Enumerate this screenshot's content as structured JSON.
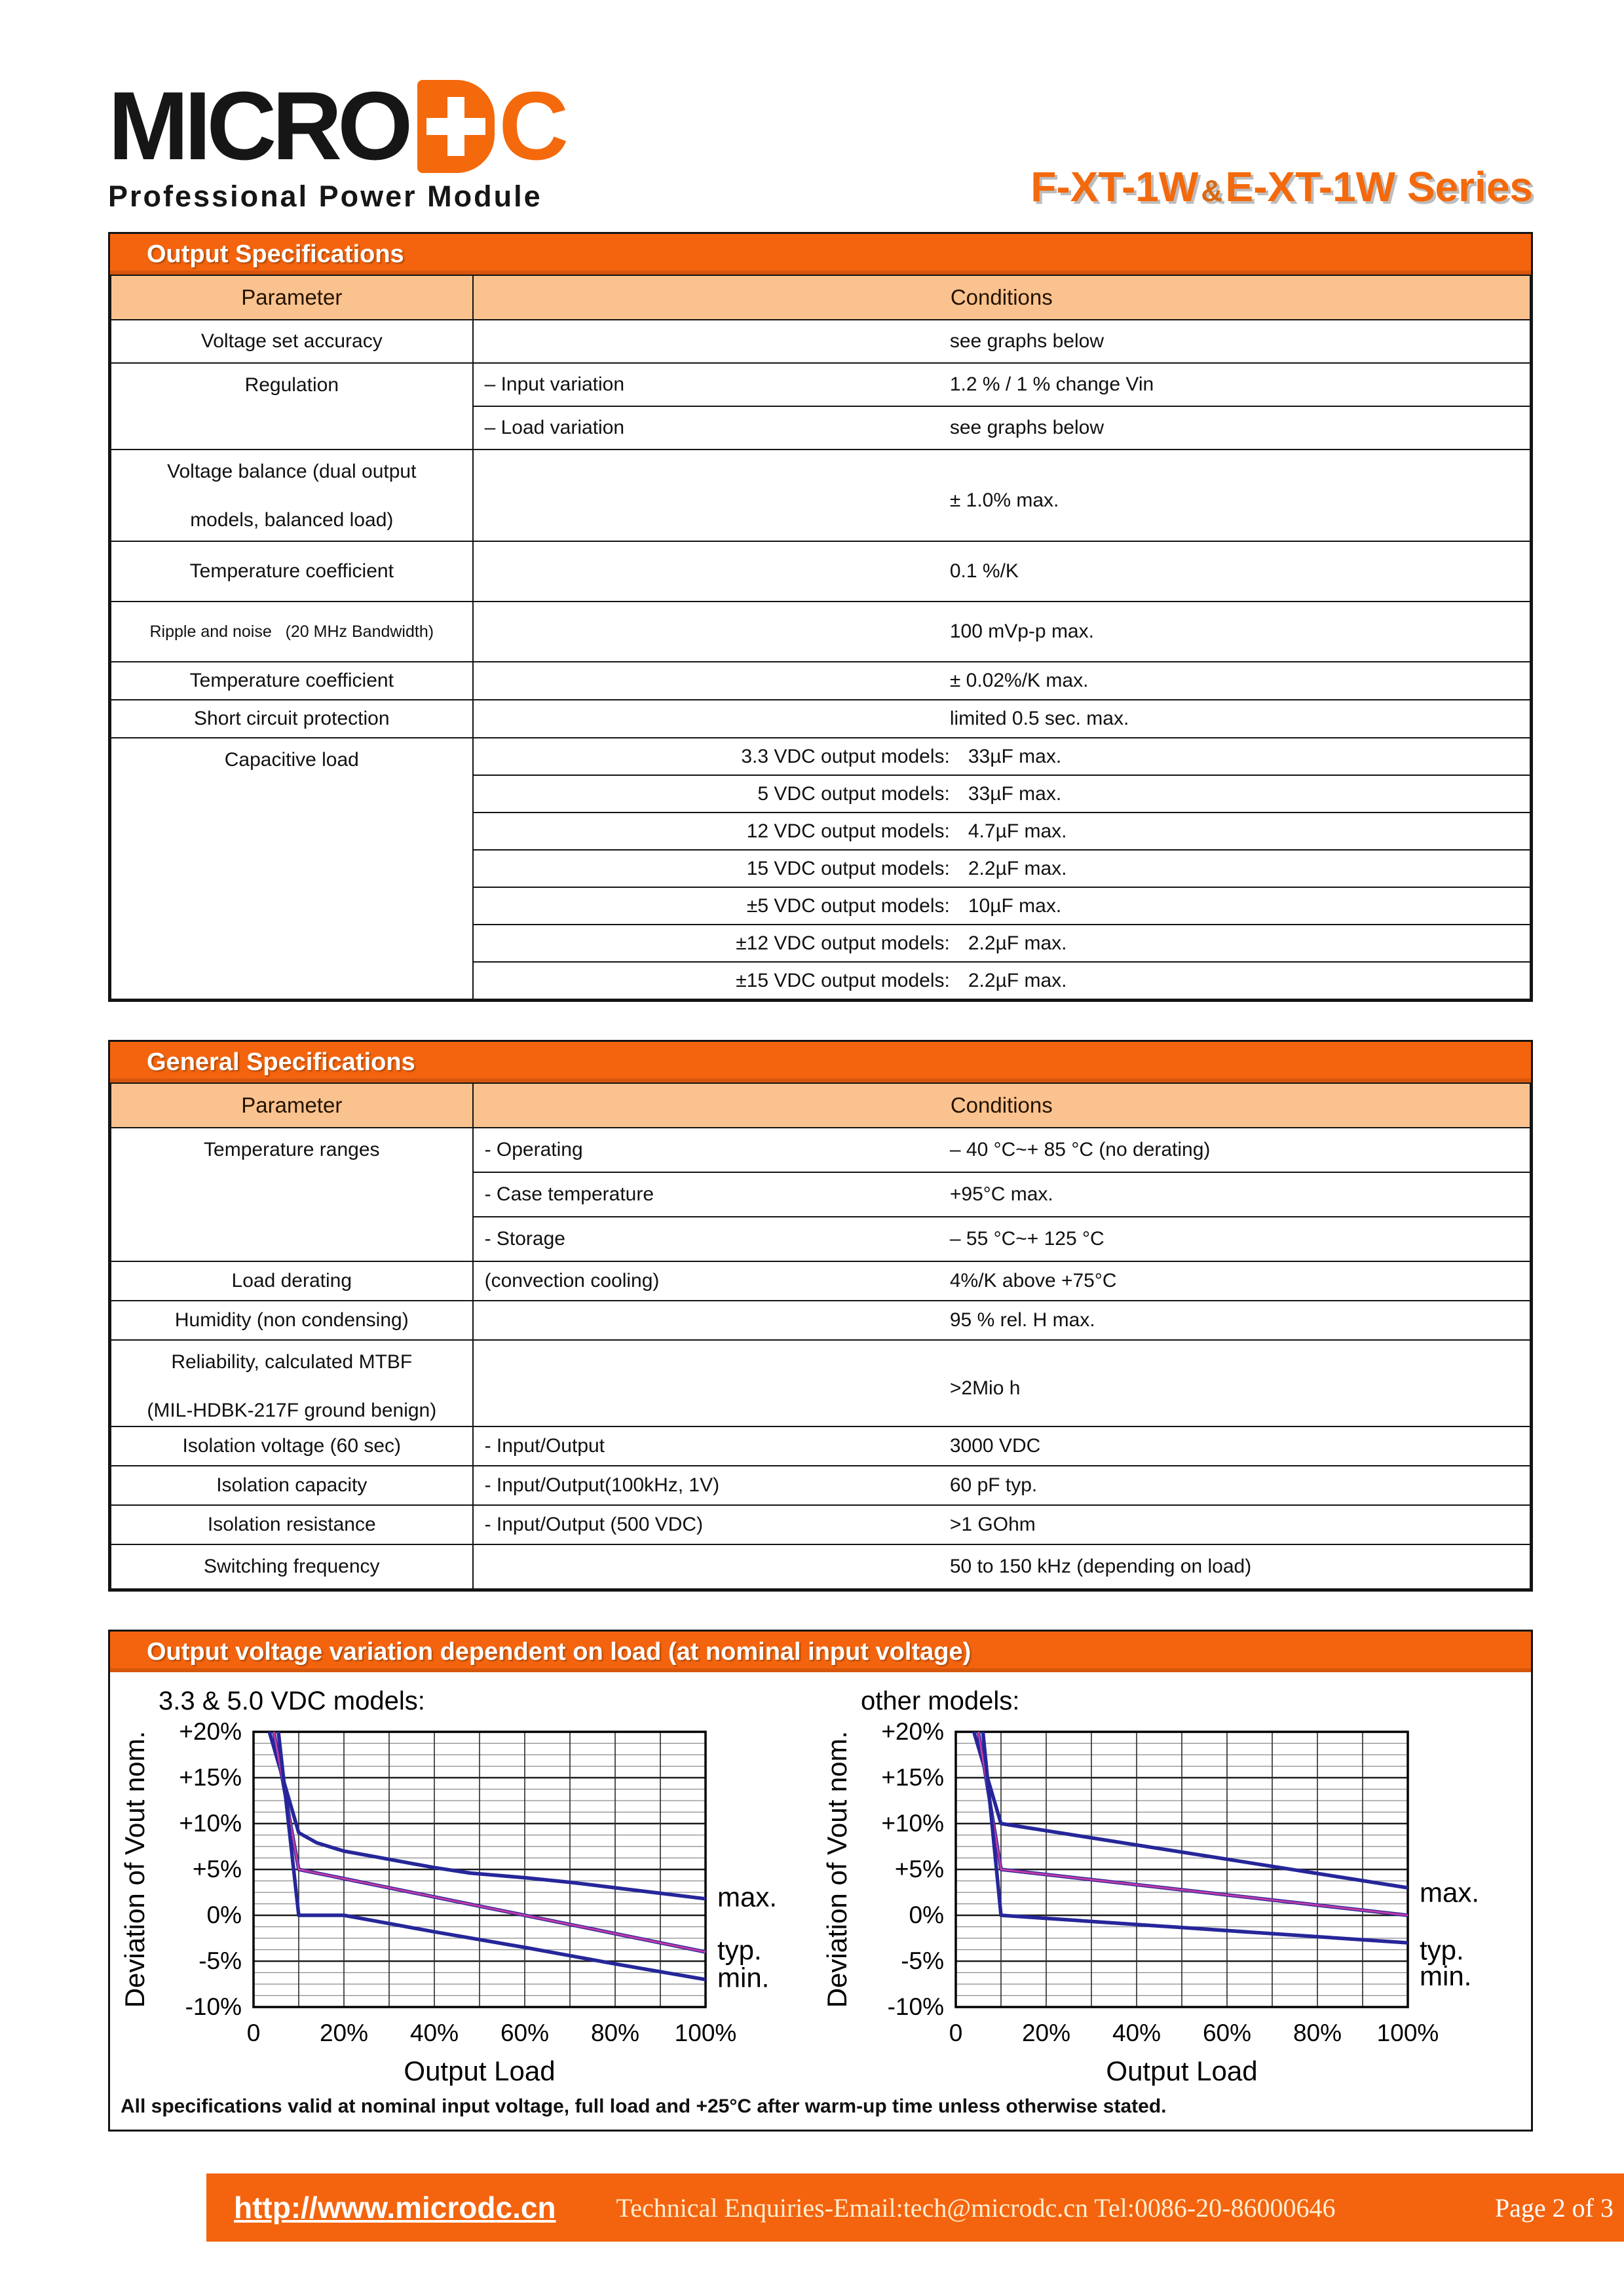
{
  "colors": {
    "orange": "#F4640E",
    "peach": "#FAC28E",
    "navy": "#26269A",
    "magenta": "#C23BA6"
  },
  "header": {
    "logo_black": "MICRO",
    "logo_c": "C",
    "subtitle": "Professional Power Module",
    "series_left": "F-XT-1W",
    "series_amp": "&",
    "series_right": "E-XT-1W Series"
  },
  "output_specs": {
    "title": "Output Specifications",
    "col_headers": [
      "Parameter",
      "Conditions"
    ],
    "rows": [
      {
        "p": "Voltage set accuracy",
        "val": "see graphs below",
        "h": 66
      },
      {
        "p": "Regulation",
        "span": 2,
        "sub": "– Input variation",
        "val": "1.2 % / 1 % change Vin",
        "h": 66
      },
      {
        "sub": "– Load variation",
        "val": "see graphs below",
        "h": 66
      },
      {
        "p": "Voltage balance (dual output|models, balanced load)",
        "tall": true,
        "val": "± 1.0% max.",
        "h": 140
      },
      {
        "p": "Temperature coefficient",
        "val": "0.1 %/K",
        "h": 92
      },
      {
        "p": "Ripple and noise   (20 MHz Bandwidth)",
        "small": true,
        "val": "100 mVp-p max.",
        "h": 92
      },
      {
        "p": "Temperature coefficient",
        "val": "± 0.02%/K max.",
        "h": 58
      },
      {
        "p": "Short circuit protection",
        "val": "limited 0.5 sec. max.",
        "h": 58
      },
      {
        "p": "Capacitive load",
        "span": 7,
        "sub": "3.3 VDC output models:",
        "sa": "r",
        "val": "33µF max.",
        "h": 57
      },
      {
        "sub": "5 VDC output models:",
        "sa": "r",
        "val": "33µF max.",
        "h": 57
      },
      {
        "sub": "12 VDC output models:",
        "sa": "r",
        "val": "4.7µF max.",
        "h": 57
      },
      {
        "sub": "15 VDC output models:",
        "sa": "r",
        "val": "2.2µF max.",
        "h": 57
      },
      {
        "sub": "±5 VDC output models:",
        "sa": "r",
        "val": "10µF max.",
        "h": 57
      },
      {
        "sub": "±12 VDC output models:",
        "sa": "r",
        "val": "2.2µF max.",
        "h": 57
      },
      {
        "sub": "±15 VDC output models:",
        "sa": "r",
        "val": "2.2µF max.",
        "h": 57
      }
    ]
  },
  "general_specs": {
    "title": "General Specifications",
    "col_headers": [
      "Parameter",
      "Conditions"
    ],
    "rows": [
      {
        "p": "Temperature ranges",
        "span": 3,
        "sub": "-  Operating",
        "val": "– 40 °C~+ 85 °C (no derating)",
        "h": 68
      },
      {
        "sub": "-  Case temperature",
        "val": "+95°C max.",
        "h": 68
      },
      {
        "sub": "-  Storage",
        "val": "– 55 °C~+ 125 °C",
        "h": 68
      },
      {
        "p": "Load derating",
        "sub": "(convection cooling)",
        "val": "4%/K above +75°C",
        "h": 60
      },
      {
        "p": "Humidity (non condensing)",
        "val": "95 % rel. H max.",
        "h": 60
      },
      {
        "p": "Reliability, calculated MTBF|(MIL-HDBK-217F ground benign)",
        "tall": true,
        "val": ">2Mio h",
        "h": 132
      },
      {
        "p": "Isolation voltage (60 sec)",
        "sub": "-  Input/Output",
        "val": "3000 VDC",
        "h": 60
      },
      {
        "p": "Isolation capacity",
        "sub": "-  Input/Output(100kHz, 1V)",
        "val": "60 pF typ.",
        "h": 60
      },
      {
        "p": "Isolation resistance",
        "sub": "-  Input/Output (500 VDC)",
        "val": ">1 GOhm",
        "h": 60
      },
      {
        "p": "Switching frequency",
        "val": "50 to 150 kHz (depending on load)",
        "h": 68
      }
    ]
  },
  "charts": {
    "title": "Output voltage variation dependent on load (at nominal input voltage)",
    "note": "All specifications valid at nominal input voltage, full load and +25°C after warm-up time unless otherwise stated."
  },
  "chart_data": [
    {
      "type": "line",
      "title": "3.3 & 5.0 VDC models:",
      "xlabel": "Output Load",
      "ylabel": "Deviation of Vout nom.",
      "xlim": [
        0,
        100
      ],
      "ylim": [
        -10,
        20
      ],
      "grid": "on",
      "legend_position": "right-of-plot",
      "xticks": [
        0,
        20,
        40,
        60,
        80,
        100
      ],
      "xtick_labels": [
        "0",
        "20%",
        "40%",
        "60%",
        "80%",
        "100%"
      ],
      "yticks": [
        20,
        15,
        10,
        5,
        0,
        -5,
        -10
      ],
      "ytick_labels": [
        "+20%",
        "+15%",
        "+10%",
        "+5%",
        "0%",
        "-5%",
        "-10%"
      ],
      "series": [
        {
          "name": "max.",
          "color": "#26269A",
          "label_y": 1.9,
          "points": [
            [
              3.5,
              20
            ],
            [
              10,
              9
            ],
            [
              14,
              7.9
            ],
            [
              20,
              7
            ],
            [
              30,
              6.1
            ],
            [
              40,
              5.2
            ],
            [
              48,
              4.6
            ],
            [
              60,
              4.1
            ],
            [
              70,
              3.6
            ],
            [
              80,
              3.0
            ],
            [
              90,
              2.4
            ],
            [
              100,
              1.8
            ]
          ]
        },
        {
          "name": "typ.",
          "color": "#26269A",
          "overlay": "#C23BA6",
          "label_y": -3.9,
          "points": [
            [
              4.5,
              20
            ],
            [
              10,
              5
            ],
            [
              20,
              4
            ],
            [
              40,
              2
            ],
            [
              60,
              0
            ],
            [
              80,
              -2
            ],
            [
              100,
              -4
            ]
          ]
        },
        {
          "name": "min.",
          "color": "#26269A",
          "label_y": -6.9,
          "points": [
            [
              5.5,
              20
            ],
            [
              10,
              0
            ],
            [
              20,
              0
            ],
            [
              30,
              -0.9
            ],
            [
              40,
              -1.8
            ],
            [
              60,
              -3.5
            ],
            [
              80,
              -5.3
            ],
            [
              100,
              -7
            ]
          ]
        }
      ]
    },
    {
      "type": "line",
      "title": "other models:",
      "xlabel": "Output Load",
      "ylabel": "Deviation of Vout nom.",
      "xlim": [
        0,
        100
      ],
      "ylim": [
        -10,
        20
      ],
      "grid": "on",
      "legend_position": "right-of-plot",
      "xticks": [
        0,
        20,
        40,
        60,
        80,
        100
      ],
      "xtick_labels": [
        "0",
        "20%",
        "40%",
        "60%",
        "80%",
        "100%"
      ],
      "yticks": [
        20,
        15,
        10,
        5,
        0,
        -5,
        -10
      ],
      "ytick_labels": [
        "+20%",
        "+15%",
        "+10%",
        "+5%",
        "0%",
        "-5%",
        "-10%"
      ],
      "series": [
        {
          "name": "max.",
          "color": "#26269A",
          "label_y": 2.4,
          "points": [
            [
              4,
              20
            ],
            [
              10,
              10
            ],
            [
              100,
              3
            ]
          ]
        },
        {
          "name": "typ.",
          "color": "#26269A",
          "overlay": "#C23BA6",
          "label_y": -3.9,
          "points": [
            [
              5,
              20
            ],
            [
              10,
              5
            ],
            [
              100,
              0
            ]
          ]
        },
        {
          "name": "min.",
          "color": "#26269A",
          "label_y": -6.7,
          "points": [
            [
              6,
              20
            ],
            [
              10,
              0
            ],
            [
              100,
              -3
            ]
          ]
        }
      ]
    }
  ],
  "footer": {
    "url": "http://www.microdc.cn",
    "contact": "Technical Enquiries-Email:tech@microdc.cn Tel:0086-20-86000646",
    "page": "Page 2 of 3"
  }
}
